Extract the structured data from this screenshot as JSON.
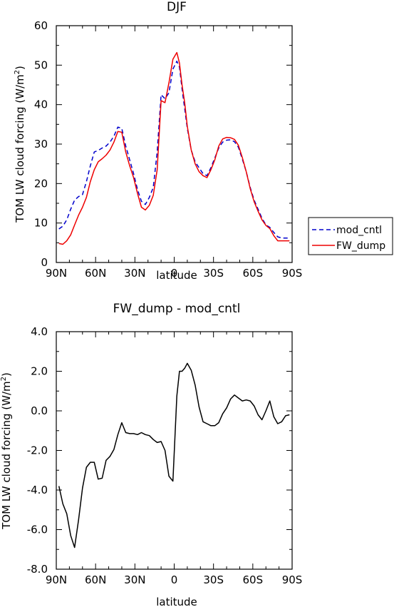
{
  "chart_data": [
    {
      "type": "line",
      "title": "DJF",
      "xlabel": "latitude",
      "ylabel": "TOM LW cloud forcing (W/m",
      "ylabel_sup": "2",
      "ylabel_tail": ")",
      "xlim": [
        90,
        -90
      ],
      "ylim": [
        0,
        60
      ],
      "xticks": [
        90,
        60,
        30,
        0,
        -30,
        -60,
        -90
      ],
      "xtick_labels": [
        "90N",
        "60N",
        "30N",
        "0",
        "30S",
        "60S",
        "90S"
      ],
      "yticks": [
        0,
        10,
        20,
        30,
        40,
        50,
        60
      ],
      "ytick_labels": [
        "0",
        "10",
        "20",
        "30",
        "40",
        "50",
        "60"
      ],
      "legend_position": "right",
      "series": [
        {
          "name": "mod_cntl",
          "color": "#0000cc",
          "dash": "dashed",
          "x": [
            88,
            85,
            82,
            79,
            76,
            73,
            70,
            67,
            64,
            61,
            58,
            55,
            52,
            49,
            46,
            43,
            40,
            37,
            34,
            31,
            28,
            25,
            22,
            19,
            16,
            13,
            10,
            7,
            4,
            1,
            -2,
            -4,
            -6,
            -8,
            -10,
            -13,
            -16,
            -19,
            -22,
            -25,
            -28,
            -31,
            -34,
            -37,
            -40,
            -43,
            -46,
            -49,
            -52,
            -55,
            -58,
            -61,
            -64,
            -67,
            -70,
            -73,
            -76,
            -79,
            -82,
            -85,
            -88
          ],
          "y": [
            8.5,
            9.2,
            10.8,
            13.5,
            15.8,
            16.7,
            17.2,
            20.5,
            24.5,
            28,
            28.4,
            29,
            29.5,
            30.5,
            32,
            34.3,
            34,
            29.5,
            26,
            22.5,
            18.5,
            15.5,
            14.7,
            16.5,
            19,
            28,
            42.5,
            41.5,
            43,
            49,
            51,
            49.5,
            44,
            39,
            34,
            28.5,
            25.5,
            24,
            22.5,
            22,
            24,
            26.5,
            29,
            30.5,
            31,
            31.1,
            30.6,
            29.2,
            26.2,
            23,
            19,
            15.8,
            13.5,
            11.2,
            9.5,
            8.9,
            7.6,
            6.5,
            6.2,
            6.2,
            6.2
          ]
        },
        {
          "name": "FW_dump",
          "color": "#ee0000",
          "dash": "solid",
          "x": [
            88,
            85,
            82,
            79,
            76,
            73,
            70,
            67,
            64,
            61,
            58,
            55,
            52,
            49,
            46,
            43,
            40,
            37,
            34,
            31,
            28,
            25,
            22,
            19,
            16,
            13,
            10,
            7,
            4,
            1,
            -2,
            -4,
            -6,
            -8,
            -10,
            -13,
            -16,
            -19,
            -22,
            -25,
            -28,
            -31,
            -34,
            -37,
            -40,
            -43,
            -46,
            -49,
            -52,
            -55,
            -58,
            -61,
            -64,
            -67,
            -70,
            -73,
            -76,
            -79,
            -82,
            -85,
            -88
          ],
          "y": [
            4.8,
            4.6,
            5.5,
            7,
            9.5,
            12,
            14,
            16.5,
            20.5,
            23.5,
            25.5,
            26.3,
            27.2,
            28.5,
            30.5,
            33.2,
            33,
            28,
            24.5,
            21.5,
            17.5,
            14,
            13.3,
            14.5,
            17,
            23.5,
            41,
            40.5,
            45.5,
            51.5,
            53.2,
            50.5,
            45,
            40.5,
            34.5,
            28.5,
            25,
            23,
            22,
            21.5,
            23.5,
            26,
            29.5,
            31.3,
            31.7,
            31.6,
            31.2,
            29.7,
            26.6,
            23,
            18.7,
            15.4,
            13,
            10.8,
            9.4,
            8.6,
            6.8,
            5.5,
            5.5,
            5.5,
            5.5
          ]
        }
      ]
    },
    {
      "type": "line",
      "title": "FW_dump - mod_cntl",
      "xlabel": "latitude",
      "ylabel": "TOM LW cloud forcing (W/m",
      "ylabel_sup": "2",
      "ylabel_tail": ")",
      "xlim": [
        90,
        -90
      ],
      "ylim": [
        -8,
        4
      ],
      "xticks": [
        90,
        60,
        30,
        0,
        -30,
        -60,
        -90
      ],
      "xtick_labels": [
        "90N",
        "60N",
        "30N",
        "0",
        "30S",
        "60S",
        "90S"
      ],
      "yticks": [
        -8,
        -6,
        -4,
        -2,
        0,
        2,
        4
      ],
      "ytick_labels": [
        "-8.0",
        "-6.0",
        "-4.0",
        "-2.0",
        "0.0",
        "2.0",
        "4.0"
      ],
      "series": [
        {
          "color": "#000000",
          "dash": "solid",
          "x": [
            88,
            85,
            82,
            79,
            76,
            73,
            70,
            67,
            64,
            61,
            58,
            55,
            52,
            49,
            46,
            43,
            40,
            37,
            34,
            31,
            28,
            25,
            22,
            19,
            16,
            13,
            10,
            7,
            4,
            1,
            -2,
            -4,
            -6,
            -8,
            -10,
            -13,
            -16,
            -19,
            -22,
            -25,
            -28,
            -31,
            -34,
            -37,
            -40,
            -43,
            -46,
            -49,
            -52,
            -55,
            -58,
            -61,
            -64,
            -67,
            -70,
            -73,
            -76,
            -79,
            -82,
            -85,
            -88
          ],
          "y": [
            -3.8,
            -4.7,
            -5.2,
            -6.3,
            -6.9,
            -5.5,
            -3.9,
            -2.85,
            -2.6,
            -2.6,
            -3.45,
            -3.4,
            -2.5,
            -2.3,
            -1.95,
            -1.2,
            -0.6,
            -1.1,
            -1.15,
            -1.15,
            -1.2,
            -1.1,
            -1.2,
            -1.25,
            -1.45,
            -1.6,
            -1.55,
            -2.0,
            -3.3,
            -3.55,
            0.75,
            2.0,
            2.0,
            2.15,
            2.4,
            2.05,
            1.3,
            0.2,
            -0.55,
            -0.65,
            -0.75,
            -0.75,
            -0.6,
            -0.15,
            0.15,
            0.6,
            0.8,
            0.65,
            0.5,
            0.55,
            0.5,
            0.25,
            -0.2,
            -0.45,
            0.0,
            0.5,
            -0.3,
            -0.65,
            -0.55,
            -0.25,
            -0.2
          ]
        }
      ]
    }
  ]
}
